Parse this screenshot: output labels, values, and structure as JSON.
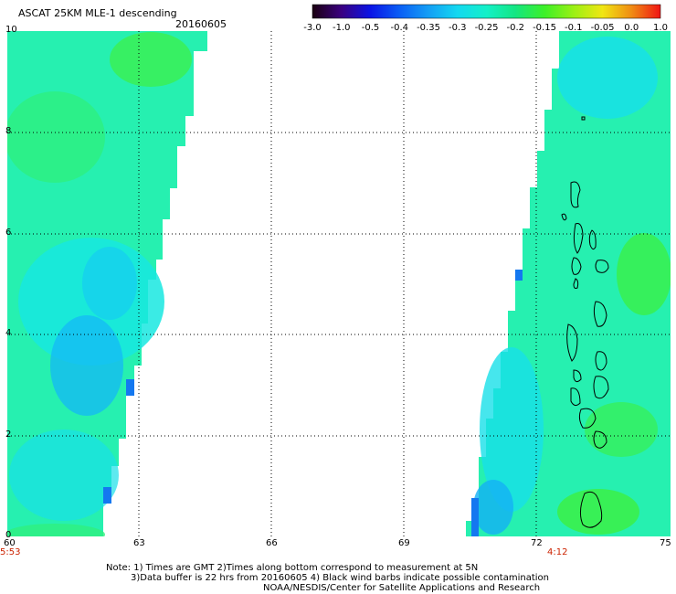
{
  "header": {
    "title": "ASCAT 25KM MLE-1 descending",
    "date": "20160605"
  },
  "colorbar": {
    "labels": [
      "-3.0",
      "-1.0",
      "-0.5",
      "-0.4",
      "-0.35",
      "-0.3",
      "-0.25",
      "-0.2",
      "-0.15",
      "-0.1",
      "-0.05",
      "0.0",
      "1.0"
    ],
    "colors": [
      "#1a0010",
      "#3a0080",
      "#0a14e6",
      "#0a5ef5",
      "#149ef5",
      "#14d8f0",
      "#14f0c8",
      "#14e682",
      "#3cf028",
      "#9af014",
      "#f0e614",
      "#f08c14",
      "#f01414"
    ]
  },
  "map": {
    "x_ticks": [
      "60",
      "63",
      "66",
      "69",
      "72",
      "75"
    ],
    "y_ticks": [
      "10",
      "8",
      "6",
      "4",
      "2",
      "0"
    ],
    "times": {
      "left": "5:53",
      "right": "4:12"
    }
  },
  "notes": {
    "line1": "Note: 1) Times are GMT 2)Times along bottom correspond to measurement at 5N",
    "line2": "3)Data buffer is 22 hrs from 20160605 4) Black wind barbs indicate possible contamination",
    "line3": "NOAA/NESDIS/Center for Satellite Applications and Research"
  }
}
